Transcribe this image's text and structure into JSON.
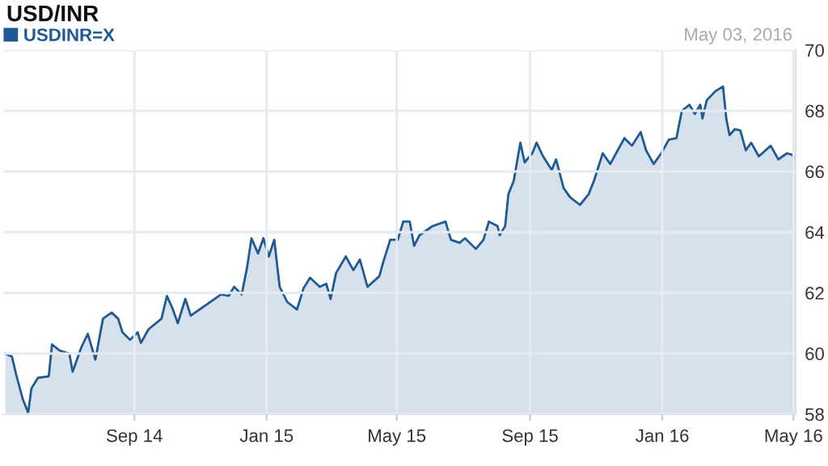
{
  "chart_data": {
    "type": "area",
    "title": "USD/INR",
    "annotations": [
      "May 03, 2016"
    ],
    "legend": "top left",
    "grid": true,
    "xlim": [
      "2014-05-03",
      "2016-05-03"
    ],
    "xticks": [
      {
        "value": "2014-09-01",
        "label": "Sep 14"
      },
      {
        "value": "2015-01-01",
        "label": "Jan 15"
      },
      {
        "value": "2015-05-01",
        "label": "May 15"
      },
      {
        "value": "2015-09-01",
        "label": "Sep 15"
      },
      {
        "value": "2016-01-01",
        "label": "Jan 16"
      },
      {
        "value": "2016-05-01",
        "label": "May 16"
      }
    ],
    "ylim": [
      58,
      70
    ],
    "yticks": [
      58,
      60,
      62,
      64,
      66,
      68,
      70
    ],
    "x": [
      "2014-05-05",
      "2014-05-11",
      "2014-05-15",
      "2014-05-21",
      "2014-05-26",
      "2014-05-29",
      "2014-06-04",
      "2014-06-14",
      "2014-06-17",
      "2014-06-24",
      "2014-07-03",
      "2014-07-06",
      "2014-07-14",
      "2014-07-20",
      "2014-07-27",
      "2014-08-03",
      "2014-08-11",
      "2014-08-17",
      "2014-08-21",
      "2014-08-28",
      "2014-09-04",
      "2014-09-07",
      "2014-09-14",
      "2014-09-26",
      "2014-10-01",
      "2014-10-06",
      "2014-10-11",
      "2014-10-18",
      "2014-10-23",
      "2014-11-02",
      "2014-11-20",
      "2014-11-27",
      "2014-12-02",
      "2014-12-09",
      "2014-12-14",
      "2014-12-18",
      "2014-12-24",
      "2014-12-29",
      "2015-01-03",
      "2015-01-08",
      "2015-01-13",
      "2015-01-20",
      "2015-01-29",
      "2015-02-04",
      "2015-02-10",
      "2015-02-19",
      "2015-02-25",
      "2015-03-01",
      "2015-03-06",
      "2015-03-15",
      "2015-03-22",
      "2015-03-28",
      "2015-04-04",
      "2015-04-15",
      "2015-04-18",
      "2015-04-25",
      "2015-05-02",
      "2015-05-07",
      "2015-05-13",
      "2015-05-17",
      "2015-05-22",
      "2015-06-03",
      "2015-06-15",
      "2015-06-20",
      "2015-06-28",
      "2015-07-03",
      "2015-07-13",
      "2015-07-20",
      "2015-07-25",
      "2015-08-02",
      "2015-08-04",
      "2015-08-09",
      "2015-08-12",
      "2015-08-17",
      "2015-08-23",
      "2015-08-27",
      "2015-09-03",
      "2015-09-07",
      "2015-09-13",
      "2015-09-21",
      "2015-09-25",
      "2015-10-02",
      "2015-10-08",
      "2015-10-17",
      "2015-10-25",
      "2015-10-30",
      "2015-11-07",
      "2015-11-14",
      "2015-11-27",
      "2015-12-04",
      "2015-12-12",
      "2015-12-17",
      "2015-12-24",
      "2015-12-31",
      "2016-01-07",
      "2016-01-14",
      "2016-01-19",
      "2016-01-26",
      "2016-01-31",
      "2016-02-05",
      "2016-02-07",
      "2016-02-11",
      "2016-02-19",
      "2016-02-26",
      "2016-02-29",
      "2016-03-03",
      "2016-03-08",
      "2016-03-13",
      "2016-03-18",
      "2016-03-23",
      "2016-03-30",
      "2016-04-10",
      "2016-04-17",
      "2016-04-25",
      "2016-04-30",
      "2016-05-03"
    ],
    "series": [
      {
        "name": "USDINR=X",
        "color": "#1f5a94",
        "values": [
          60.0,
          59.9,
          59.3,
          58.5,
          58.05,
          58.85,
          59.2,
          59.25,
          60.3,
          60.1,
          60.0,
          59.4,
          60.2,
          60.65,
          59.8,
          61.15,
          61.35,
          61.15,
          60.7,
          60.45,
          60.7,
          60.35,
          60.8,
          61.15,
          61.9,
          61.5,
          61.0,
          61.8,
          61.25,
          61.5,
          61.95,
          61.9,
          62.2,
          61.95,
          62.85,
          63.8,
          63.3,
          63.8,
          63.2,
          63.75,
          62.2,
          61.7,
          61.45,
          62.15,
          62.5,
          62.2,
          62.3,
          61.8,
          62.65,
          63.2,
          62.75,
          63.1,
          62.2,
          62.55,
          62.95,
          63.75,
          63.75,
          64.35,
          64.35,
          63.55,
          63.9,
          64.2,
          64.35,
          63.75,
          63.65,
          63.8,
          63.45,
          63.75,
          64.35,
          64.2,
          63.9,
          64.2,
          65.25,
          65.7,
          66.95,
          66.3,
          66.6,
          66.95,
          66.5,
          66.05,
          66.4,
          65.45,
          65.15,
          64.9,
          65.25,
          65.7,
          66.6,
          66.25,
          67.1,
          66.85,
          67.3,
          66.7,
          66.25,
          66.6,
          67.05,
          67.1,
          68.0,
          68.2,
          67.9,
          68.2,
          67.75,
          68.35,
          68.65,
          68.8,
          67.75,
          67.2,
          67.4,
          67.35,
          66.7,
          66.95,
          66.5,
          66.85,
          66.4,
          66.6,
          66.55,
          66.4
        ]
      }
    ]
  }
}
